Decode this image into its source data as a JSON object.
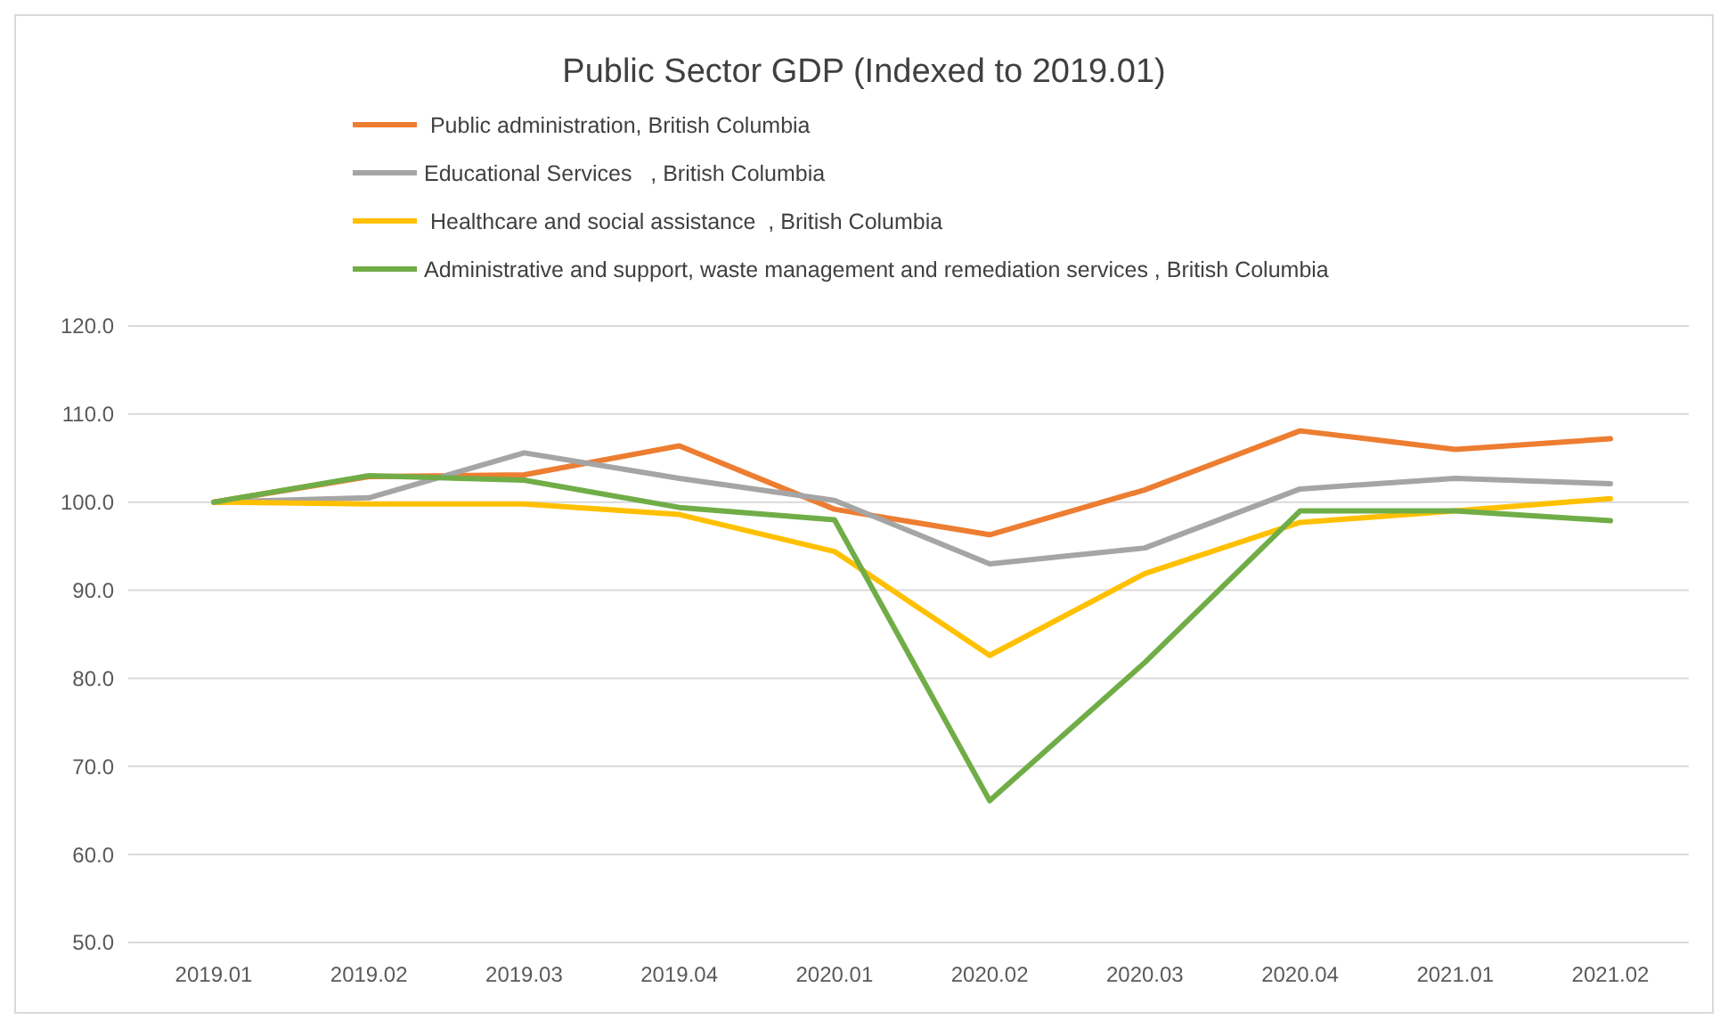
{
  "chart_data": {
    "type": "line",
    "title": "Public Sector GDP (Indexed to 2019.01)",
    "categories": [
      "2019.01",
      "2019.02",
      "2019.03",
      "2019.04",
      "2020.01",
      "2020.02",
      "2020.03",
      "2020.04",
      "2021.01",
      "2021.02"
    ],
    "series": [
      {
        "name": " Public administration, British Columbia",
        "color": "#ed7d31",
        "values": [
          100,
          102.9,
          103.1,
          106.4,
          99.2,
          96.3,
          101.4,
          108.1,
          106,
          107.2
        ]
      },
      {
        "name": "Educational Services   , British Columbia",
        "color": "#a5a5a5",
        "values": [
          100,
          100.5,
          105.6,
          102.7,
          100.2,
          93,
          94.8,
          101.5,
          102.7,
          102.1
        ]
      },
      {
        "name": " Healthcare and social assistance  , British Columbia",
        "color": "#ffc000",
        "values": [
          100,
          99.8,
          99.8,
          98.6,
          94.4,
          82.6,
          91.9,
          97.7,
          99,
          100.4
        ]
      },
      {
        "name": "Administrative and support, waste management and remediation services , British Columbia",
        "color": "#70ad47",
        "values": [
          100,
          103,
          102.5,
          99.4,
          98,
          66.1,
          81.8,
          99,
          99,
          97.9
        ]
      }
    ],
    "ylim": [
      50,
      120
    ],
    "yticks": [
      {
        "value": 50,
        "label": "50.0"
      },
      {
        "value": 60,
        "label": "60.0"
      },
      {
        "value": 70,
        "label": "70.0"
      },
      {
        "value": 80,
        "label": "80.0"
      },
      {
        "value": 90,
        "label": "90.0"
      },
      {
        "value": 100,
        "label": "100.0"
      },
      {
        "value": 110,
        "label": "110.0"
      },
      {
        "value": 120,
        "label": "120.0"
      }
    ],
    "grid": "y",
    "legend": "top",
    "marker": "none",
    "line_style": "solid"
  }
}
